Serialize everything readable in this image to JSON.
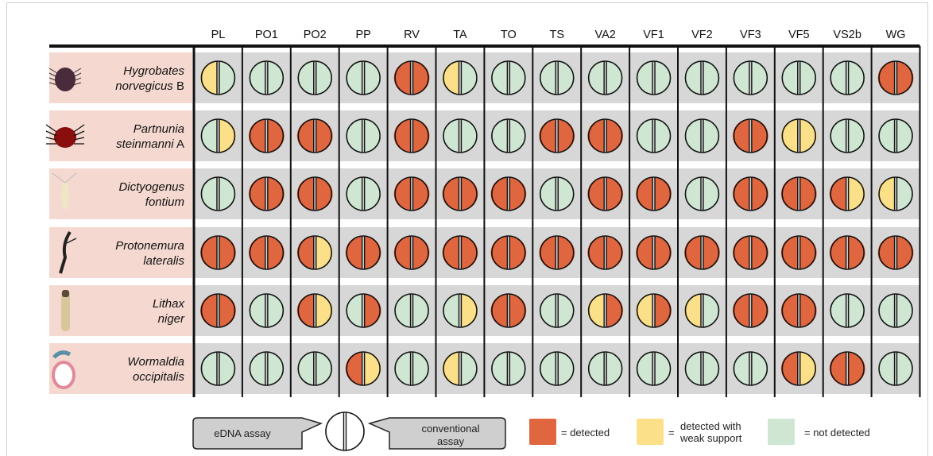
{
  "columns": [
    "PL",
    "PO1",
    "PO2",
    "PP",
    "RV",
    "TA",
    "TO",
    "TS",
    "VA2",
    "VF1",
    "VF2",
    "VF3",
    "VF5",
    "VS2b",
    "WG"
  ],
  "colors": {
    "detected": "#e0663f",
    "weak": "#fbe089",
    "not_detected": "#cfe6d3",
    "row_band": "#d7d7d7",
    "label_bg": "#f5d9d0"
  },
  "species": [
    {
      "line1": "Hygrobates",
      "line2": "norvegicus",
      "suffix": "B",
      "icon": "water-mite-icon",
      "cells": [
        [
          "W",
          "N"
        ],
        [
          "N",
          "N"
        ],
        [
          "N",
          "N"
        ],
        [
          "N",
          "N"
        ],
        [
          "D",
          "D"
        ],
        [
          "W",
          "N"
        ],
        [
          "N",
          "N"
        ],
        [
          "N",
          "N"
        ],
        [
          "N",
          "N"
        ],
        [
          "N",
          "N"
        ],
        [
          "N",
          "N"
        ],
        [
          "N",
          "N"
        ],
        [
          "N",
          "N"
        ],
        [
          "N",
          "N"
        ],
        [
          "D",
          "D"
        ]
      ]
    },
    {
      "line1": "Partnunia",
      "line2": "steinmanni",
      "suffix": "A",
      "icon": "red-mite-icon",
      "cells": [
        [
          "N",
          "W"
        ],
        [
          "D",
          "D"
        ],
        [
          "D",
          "D"
        ],
        [
          "N",
          "N"
        ],
        [
          "D",
          "D"
        ],
        [
          "N",
          "N"
        ],
        [
          "N",
          "N"
        ],
        [
          "D",
          "D"
        ],
        [
          "D",
          "D"
        ],
        [
          "N",
          "N"
        ],
        [
          "N",
          "N"
        ],
        [
          "D",
          "D"
        ],
        [
          "W",
          "W"
        ],
        [
          "N",
          "N"
        ],
        [
          "N",
          "N"
        ]
      ]
    },
    {
      "line1": "Dictyogenus",
      "line2": "fontium",
      "suffix": "",
      "icon": "stonefly-nymph-icon",
      "cells": [
        [
          "N",
          "N"
        ],
        [
          "D",
          "D"
        ],
        [
          "D",
          "D"
        ],
        [
          "N",
          "N"
        ],
        [
          "D",
          "D"
        ],
        [
          "D",
          "D"
        ],
        [
          "D",
          "D"
        ],
        [
          "N",
          "N"
        ],
        [
          "D",
          "D"
        ],
        [
          "D",
          "D"
        ],
        [
          "N",
          "N"
        ],
        [
          "D",
          "D"
        ],
        [
          "D",
          "D"
        ],
        [
          "D",
          "W"
        ],
        [
          "W",
          "N"
        ]
      ]
    },
    {
      "line1": "Protonemura",
      "line2": "lateralis",
      "suffix": "",
      "icon": "stonefly-larva-icon",
      "cells": [
        [
          "D",
          "D"
        ],
        [
          "D",
          "D"
        ],
        [
          "D",
          "W"
        ],
        [
          "D",
          "D"
        ],
        [
          "D",
          "D"
        ],
        [
          "D",
          "D"
        ],
        [
          "D",
          "D"
        ],
        [
          "D",
          "D"
        ],
        [
          "D",
          "D"
        ],
        [
          "D",
          "D"
        ],
        [
          "D",
          "D"
        ],
        [
          "D",
          "D"
        ],
        [
          "D",
          "D"
        ],
        [
          "D",
          "D"
        ],
        [
          "D",
          "D"
        ]
      ]
    },
    {
      "line1": "Lithax",
      "line2": "niger",
      "suffix": "",
      "icon": "caddis-larva-icon",
      "cells": [
        [
          "D",
          "D"
        ],
        [
          "N",
          "N"
        ],
        [
          "D",
          "W"
        ],
        [
          "N",
          "D"
        ],
        [
          "N",
          "N"
        ],
        [
          "N",
          "W"
        ],
        [
          "D",
          "D"
        ],
        [
          "N",
          "N"
        ],
        [
          "W",
          "D"
        ],
        [
          "W",
          "D"
        ],
        [
          "W",
          "N"
        ],
        [
          "D",
          "D"
        ],
        [
          "D",
          "D"
        ],
        [
          "N",
          "N"
        ],
        [
          "N",
          "N"
        ]
      ]
    },
    {
      "line1": "Wormaldia",
      "line2": "occipitalis",
      "suffix": "",
      "icon": "curled-larva-icon",
      "cells": [
        [
          "N",
          "N"
        ],
        [
          "N",
          "N"
        ],
        [
          "N",
          "N"
        ],
        [
          "D",
          "W"
        ],
        [
          "N",
          "N"
        ],
        [
          "W",
          "N"
        ],
        [
          "N",
          "N"
        ],
        [
          "N",
          "N"
        ],
        [
          "N",
          "N"
        ],
        [
          "N",
          "N"
        ],
        [
          "N",
          "N"
        ],
        [
          "N",
          "N"
        ],
        [
          "D",
          "W"
        ],
        [
          "D",
          "D"
        ],
        [
          "N",
          "N"
        ]
      ]
    }
  ],
  "legend": {
    "edna": "eDNA assay",
    "conventional_line1": "conventional",
    "conventional_line2": "assay",
    "detected": "= detected",
    "weak_eq": "=",
    "weak_line1": "detected with",
    "weak_line2": "weak support",
    "not_detected": "= not detected"
  }
}
